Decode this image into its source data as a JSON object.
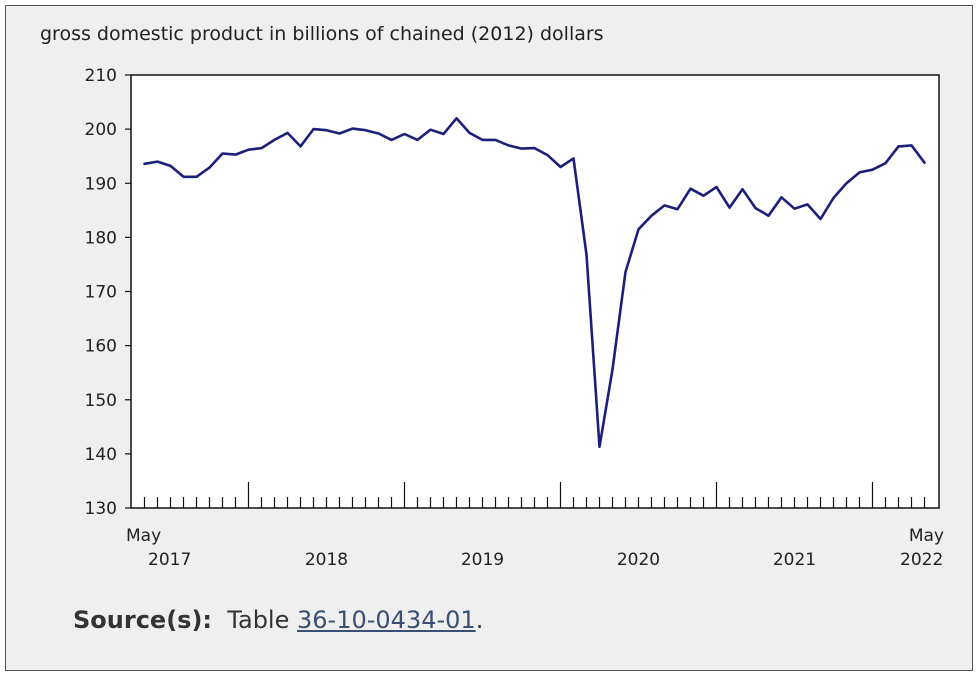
{
  "chart_data": {
    "type": "line",
    "title": "gross domestic product in billions of chained (2012) dollars",
    "xlabel": "",
    "ylabel": "",
    "ylim": [
      130,
      210
    ],
    "yticks": [
      130,
      140,
      150,
      160,
      170,
      180,
      190,
      200,
      210
    ],
    "x_start": "May 2017",
    "x_end": "May 2022",
    "x_tick_labels": [
      {
        "month": "May",
        "year": "2017",
        "index": 0
      },
      {
        "month": "",
        "year": "2018",
        "index": 8
      },
      {
        "month": "",
        "year": "2019",
        "index": 20
      },
      {
        "month": "",
        "year": "2020",
        "index": 32
      },
      {
        "month": "",
        "year": "2021",
        "index": 44
      },
      {
        "month": "May",
        "year": "2022",
        "index": 60
      }
    ],
    "series": [
      {
        "name": "",
        "color": "#1c1f7a",
        "values": [
          193.6,
          194.0,
          193.2,
          191.2,
          191.2,
          192.9,
          195.5,
          195.3,
          196.2,
          196.5,
          198.0,
          199.3,
          196.8,
          200.0,
          199.8,
          199.2,
          200.1,
          199.8,
          199.2,
          198.0,
          199.1,
          198.0,
          199.9,
          199.1,
          202.0,
          199.3,
          198.0,
          198.0,
          197.0,
          196.4,
          196.5,
          195.2,
          193.0,
          194.6,
          176.8,
          141.3,
          155.6,
          173.6,
          181.5,
          184.0,
          185.9,
          185.2,
          189.0,
          187.7,
          189.3,
          185.5,
          188.9,
          185.4,
          184.0,
          187.4,
          185.3,
          186.1,
          183.4,
          187.3,
          190.0,
          192.0,
          192.5,
          193.7,
          196.8,
          197.0,
          193.8
        ]
      }
    ]
  },
  "source": {
    "label": "Source(s):",
    "prefix": "Table",
    "link_text": "36-10-0434-01",
    "suffix": "."
  }
}
